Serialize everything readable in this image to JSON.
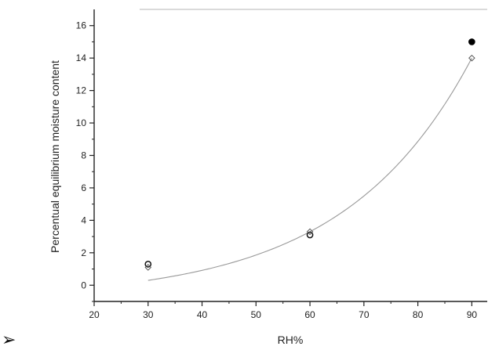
{
  "chart_data": {
    "type": "scatter",
    "xlabel": "RH%",
    "ylabel": "Percentual equilibrium moisture content",
    "xlim": [
      20,
      93
    ],
    "ylim": [
      -1,
      17
    ],
    "x_ticks": [
      "20",
      "30",
      "40",
      "50",
      "60",
      "70",
      "80",
      "90"
    ],
    "y_ticks": [
      "0",
      "2",
      "4",
      "6",
      "8",
      "10",
      "12",
      "14",
      "16"
    ],
    "series": [
      {
        "marker": "open-circle",
        "color": "#111111",
        "points": [
          {
            "x": 30,
            "y": 1.3
          },
          {
            "x": 60,
            "y": 3.1
          }
        ]
      },
      {
        "marker": "filled-circle",
        "color": "#000000",
        "points": [
          {
            "x": 90,
            "y": 15.0
          }
        ]
      },
      {
        "marker": "open-diamond",
        "color": "#555555",
        "points": [
          {
            "x": 30,
            "y": 1.1
          },
          {
            "x": 60,
            "y": 3.3
          },
          {
            "x": 90,
            "y": 14.0
          }
        ]
      }
    ],
    "fit_curve": {
      "type": "exponential",
      "color": "#999999",
      "points": [
        {
          "x": 30,
          "y": 0.3
        },
        {
          "x": 60,
          "y": 3.3
        },
        {
          "x": 90,
          "y": 14.0
        }
      ]
    },
    "grid": false,
    "legend": "none"
  },
  "decor": {
    "bullet_glyph": "➢"
  }
}
